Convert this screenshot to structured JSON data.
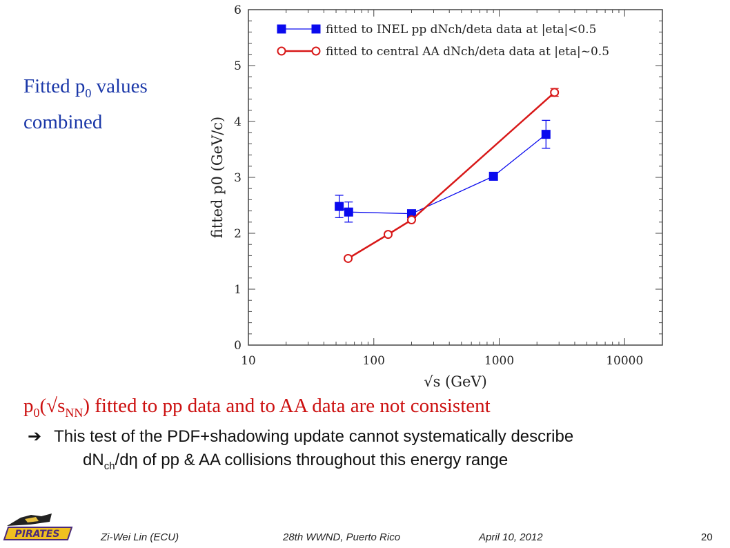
{
  "slide": {
    "side_title_pre": "Fitted p",
    "side_title_sub": "0",
    "side_title_post": " values",
    "side_title_line2": "combined",
    "statement_pre": "p",
    "statement_sub0": "0",
    "statement_mid": "(√s",
    "statement_subNN": "NN",
    "statement_post": ") fitted to pp data and to AA data are not consistent",
    "arrow_glyph": "➔",
    "point_line1": "This test of the PDF+shadowing update cannot systematically describe",
    "point_line2_pre": "dN",
    "point_line2_sub": "ch",
    "point_line2_post": "/dη of pp & AA collisions throughout this energy range"
  },
  "footer": {
    "author": "Zi-Wei Lin (ECU)",
    "event": "28th WWND, Puerto Rico",
    "date": "April 10, 2012",
    "page": "20",
    "logo_text": "PIRATES"
  },
  "colors": {
    "accent_blue": "#1a37a8",
    "statement_red": "#cc1010",
    "series_blue": "#0a0aee",
    "series_red": "#d81818"
  },
  "chart_data": {
    "type": "line",
    "xlabel": "√s (GeV)",
    "ylabel": "fitted p0 (GeV/c)",
    "xscale": "log",
    "xlim": [
      10,
      20000
    ],
    "ylim": [
      0,
      6
    ],
    "xticks": [
      10,
      100,
      1000,
      10000
    ],
    "xtick_labels": [
      "10",
      "100",
      "1000",
      "10000"
    ],
    "yticks": [
      0,
      1,
      2,
      3,
      4,
      5,
      6
    ],
    "ytick_labels": [
      "0",
      "1",
      "2",
      "3",
      "4",
      "5",
      "6"
    ],
    "grid": false,
    "legend_position": "top-left",
    "series": [
      {
        "name": "fitted to INEL pp dNch/deta data at |eta|<0.5",
        "marker": "square",
        "color": "#0a0aee",
        "points": [
          {
            "x": 53,
            "y": 2.48,
            "err": 0.2
          },
          {
            "x": 63,
            "y": 2.38,
            "err": 0.18
          },
          {
            "x": 200,
            "y": 2.35,
            "err": 0.03
          },
          {
            "x": 900,
            "y": 3.02,
            "err": 0.04
          },
          {
            "x": 2360,
            "y": 3.77,
            "err": 0.25
          }
        ]
      },
      {
        "name": "fitted to central AA dNch/deta data at |eta|~0.5",
        "marker": "circle",
        "color": "#d81818",
        "points": [
          {
            "x": 62.4,
            "y": 1.55,
            "err": 0.02
          },
          {
            "x": 130,
            "y": 1.98,
            "err": 0.02
          },
          {
            "x": 200,
            "y": 2.24,
            "err": 0.02
          },
          {
            "x": 2760,
            "y": 4.52,
            "err": 0.07
          }
        ]
      }
    ]
  }
}
